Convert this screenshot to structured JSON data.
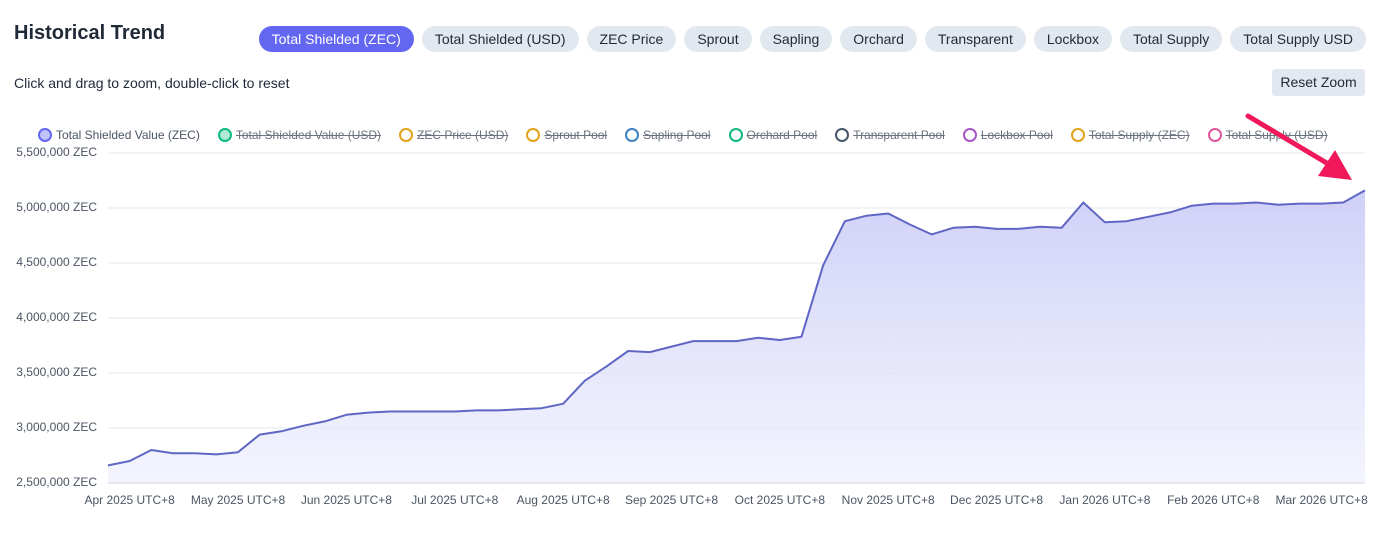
{
  "header": {
    "title": "Historical Trend",
    "tabs": [
      "Total Shielded (ZEC)",
      "Total Shielded (USD)",
      "ZEC Price",
      "Sprout",
      "Sapling",
      "Orchard",
      "Transparent",
      "Lockbox",
      "Total Supply",
      "Total Supply USD"
    ],
    "active_tab": 0,
    "hint": "Click and drag to zoom, double-click to reset",
    "reset_button": "Reset Zoom"
  },
  "chart_data": {
    "type": "area",
    "legend": [
      {
        "name": "Total Shielded Value (ZEC)",
        "color": "#6366f1",
        "visible": true
      },
      {
        "name": "Total Shielded Value (USD)",
        "color": "#10b981",
        "visible": false
      },
      {
        "name": "ZEC Price (USD)",
        "color": "#e3a21a",
        "visible": false
      },
      {
        "name": "Sprout Pool",
        "color": "#e3a21a",
        "visible": false
      },
      {
        "name": "Sapling Pool",
        "color": "#3b82c4",
        "visible": false
      },
      {
        "name": "Orchard Pool",
        "color": "#10b981",
        "visible": false
      },
      {
        "name": "Transparent Pool",
        "color": "#475569",
        "visible": false
      },
      {
        "name": "Lockbox Pool",
        "color": "#a855c7",
        "visible": false
      },
      {
        "name": "Total Supply (ZEC)",
        "color": "#e3a21a",
        "visible": false
      },
      {
        "name": "Total Supply (USD)",
        "color": "#e0559a",
        "visible": false
      }
    ],
    "categories": [
      null,
      "Apr 2025 UTC+8",
      null,
      null,
      null,
      null,
      "May 2025 UTC+8",
      null,
      null,
      null,
      null,
      "Jun 2025 UTC+8",
      null,
      null,
      null,
      null,
      "Jul 2025 UTC+8",
      null,
      null,
      null,
      null,
      "Aug 2025 UTC+8",
      null,
      null,
      null,
      null,
      "Sep 2025 UTC+8",
      null,
      null,
      null,
      null,
      "Oct 2025 UTC+8",
      null,
      null,
      null,
      null,
      "Nov 2025 UTC+8",
      null,
      null,
      null,
      null,
      "Dec 2025 UTC+8",
      null,
      null,
      null,
      null,
      "Jan 2026 UTC+8",
      null,
      null,
      null,
      null,
      "Feb 2026 UTC+8",
      null,
      null,
      null,
      null,
      "Mar 2026 UTC+8",
      null,
      null
    ],
    "series": [
      {
        "name": "Total Shielded Value (ZEC)",
        "color": "#5f66c4",
        "values": [
          2660000,
          2700000,
          2800000,
          2770000,
          2770000,
          2760000,
          2780000,
          2940000,
          2970000,
          3020000,
          3060000,
          3120000,
          3140000,
          3150000,
          3150000,
          3150000,
          3150000,
          3160000,
          3160000,
          3170000,
          3180000,
          3220000,
          3430000,
          3560000,
          3700000,
          3690000,
          3740000,
          3790000,
          3790000,
          3790000,
          3820000,
          3800000,
          3830000,
          4480000,
          4880000,
          4930000,
          4950000,
          4850000,
          4760000,
          4820000,
          4830000,
          4810000,
          4810000,
          4830000,
          4820000,
          5050000,
          4870000,
          4880000,
          4920000,
          4960000,
          5020000,
          5040000,
          5040000,
          5050000,
          5030000,
          5040000,
          5040000,
          5050000,
          5160000
        ]
      }
    ],
    "ylim": [
      2500000,
      5500000
    ],
    "yticks": [
      {
        "value": 2500000,
        "label": "2,500,000 ZEC"
      },
      {
        "value": 3000000,
        "label": "3,000,000 ZEC"
      },
      {
        "value": 3500000,
        "label": "3,500,000 ZEC"
      },
      {
        "value": 4000000,
        "label": "4,000,000 ZEC"
      },
      {
        "value": 4500000,
        "label": "4,500,000 ZEC"
      },
      {
        "value": 5000000,
        "label": "5,000,000 ZEC"
      },
      {
        "value": 5500000,
        "label": "5,500,000 ZEC"
      }
    ],
    "grid": true
  }
}
